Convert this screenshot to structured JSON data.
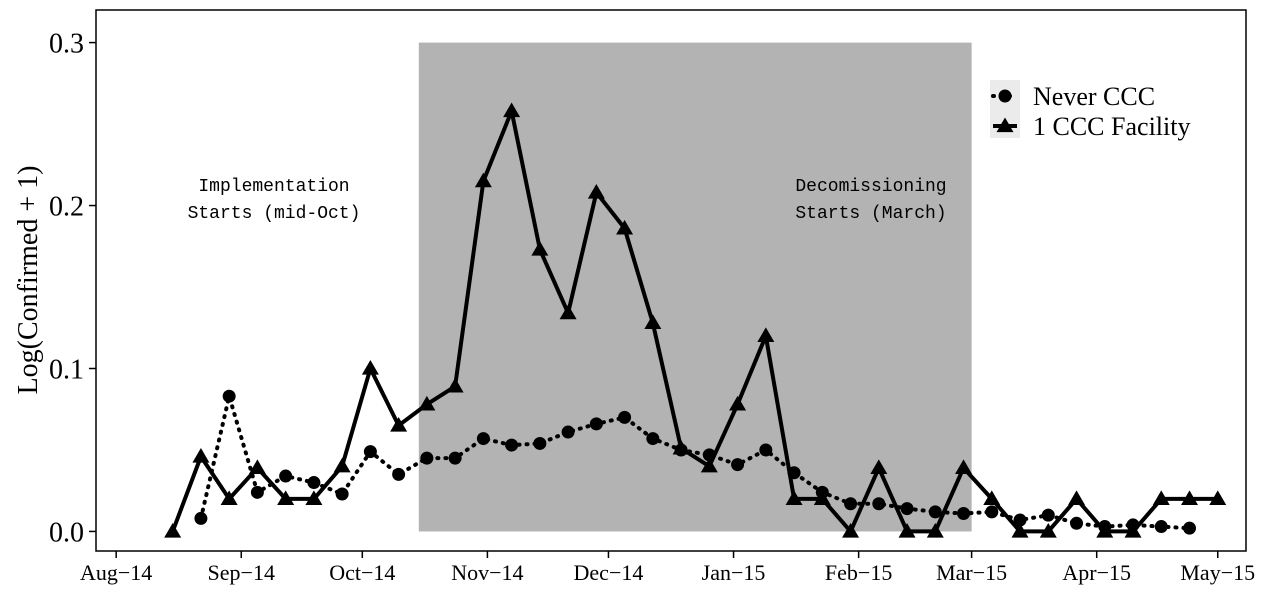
{
  "chart_data": {
    "type": "line",
    "ylabel": "Log(Confirmed + 1)",
    "ylim": [
      -0.012,
      0.32
    ],
    "y_ticks": [
      "0.0",
      "0.1",
      "0.2",
      "0.3"
    ],
    "y_tick_values": [
      0.0,
      0.1,
      0.2,
      0.3
    ],
    "x_ticks": [
      "Aug−14",
      "Sep−14",
      "Oct−14",
      "Nov−14",
      "Dec−14",
      "Jan−15",
      "Feb−15",
      "Mar−15",
      "Apr−15",
      "May−15"
    ],
    "x_tick_dates": [
      "2014-08-01",
      "2014-09-01",
      "2014-10-01",
      "2014-11-01",
      "2014-12-01",
      "2015-01-01",
      "2015-02-01",
      "2015-03-01",
      "2015-04-01",
      "2015-05-01"
    ],
    "xlim": [
      "2014-07-27",
      "2015-05-08"
    ],
    "shaded_region": {
      "start": "2014-10-15",
      "end": "2015-03-01",
      "ymin": 0.0,
      "ymax": 0.3,
      "color": "#b3b3b3"
    },
    "annotations": [
      {
        "lines": [
          "Implementation",
          "Starts (mid-Oct)"
        ]
      },
      {
        "lines": [
          "Decomissioning",
          "Starts (March)"
        ]
      }
    ],
    "legend_position": "top-right",
    "series": [
      {
        "name": "Never CCC",
        "marker": "circle",
        "line_style": "dotted",
        "dates": [
          "2014-08-22",
          "2014-08-29",
          "2014-09-05",
          "2014-09-12",
          "2014-09-19",
          "2014-09-26",
          "2014-10-03",
          "2014-10-10",
          "2014-10-17",
          "2014-10-24",
          "2014-10-31",
          "2014-11-07",
          "2014-11-14",
          "2014-11-21",
          "2014-11-28",
          "2014-12-05",
          "2014-12-12",
          "2014-12-19",
          "2014-12-26",
          "2015-01-02",
          "2015-01-09",
          "2015-01-16",
          "2015-01-23",
          "2015-01-30",
          "2015-02-06",
          "2015-02-13",
          "2015-02-20",
          "2015-02-27",
          "2015-03-06",
          "2015-03-13",
          "2015-03-20",
          "2015-03-27",
          "2015-04-03",
          "2015-04-10",
          "2015-04-17",
          "2015-04-24"
        ],
        "values": [
          0.008,
          0.083,
          0.024,
          0.034,
          0.03,
          0.023,
          0.049,
          0.035,
          0.045,
          0.045,
          0.057,
          0.053,
          0.054,
          0.061,
          0.066,
          0.07,
          0.057,
          0.05,
          0.047,
          0.041,
          0.05,
          0.036,
          0.024,
          0.017,
          0.017,
          0.014,
          0.012,
          0.011,
          0.012,
          0.007,
          0.01,
          0.005,
          0.003,
          0.004,
          0.003,
          0.002
        ]
      },
      {
        "name": "1 CCC Facility",
        "marker": "triangle",
        "line_style": "solid",
        "dates": [
          "2014-08-15",
          "2014-08-22",
          "2014-08-29",
          "2014-09-05",
          "2014-09-12",
          "2014-09-19",
          "2014-09-26",
          "2014-10-03",
          "2014-10-10",
          "2014-10-17",
          "2014-10-24",
          "2014-10-31",
          "2014-11-07",
          "2014-11-14",
          "2014-11-21",
          "2014-11-28",
          "2014-12-05",
          "2014-12-12",
          "2014-12-19",
          "2014-12-26",
          "2015-01-02",
          "2015-01-09",
          "2015-01-16",
          "2015-01-23",
          "2015-01-30",
          "2015-02-06",
          "2015-02-13",
          "2015-02-20",
          "2015-02-27",
          "2015-03-06",
          "2015-03-13",
          "2015-03-20",
          "2015-03-27",
          "2015-04-03",
          "2015-04-10",
          "2015-04-17",
          "2015-04-24",
          "2015-05-01"
        ],
        "values": [
          0.0,
          0.046,
          0.02,
          0.039,
          0.02,
          0.02,
          0.04,
          0.1,
          0.065,
          0.078,
          0.089,
          0.215,
          0.258,
          0.173,
          0.134,
          0.208,
          0.186,
          0.128,
          0.051,
          0.04,
          0.078,
          0.12,
          0.02,
          0.02,
          0.0,
          0.039,
          0.0,
          0.0,
          0.039,
          0.02,
          0.0,
          0.0,
          0.02,
          0.0,
          0.0,
          0.02,
          0.02,
          0.02
        ]
      }
    ]
  }
}
